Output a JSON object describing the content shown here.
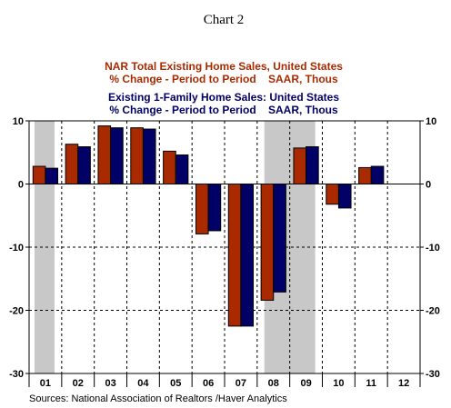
{
  "chart_data": {
    "type": "bar",
    "title": "Chart 2",
    "categories": [
      "01",
      "02",
      "03",
      "04",
      "05",
      "06",
      "07",
      "08",
      "09",
      "10",
      "11",
      "12"
    ],
    "series": [
      {
        "name": "NAR Total Existing Home Sales, United States",
        "subtitle": "% Change - Period to Period    SAAR, Thous",
        "color": "#aa2a00",
        "values": [
          2.8,
          6.3,
          9.2,
          8.9,
          5.2,
          -7.9,
          -22.5,
          -18.4,
          5.7,
          -3.2,
          2.6,
          null
        ]
      },
      {
        "name": "Existing 1-Family Home Sales: United States",
        "subtitle": "% Change - Period to Period    SAAR, Thous",
        "color": "#000066",
        "values": [
          2.5,
          5.9,
          8.9,
          8.7,
          4.6,
          -7.4,
          -22.5,
          -17.1,
          5.9,
          -3.8,
          2.8,
          null
        ]
      }
    ],
    "ylim": [
      -30,
      10
    ],
    "yticks": [
      10,
      0,
      -10,
      -20,
      -30
    ],
    "shaded_periods": [
      {
        "label": "2001 recession",
        "start_category": "01",
        "end_category": "01"
      },
      {
        "label": "2008-09 recession",
        "start_category": "08",
        "end_category": "09"
      }
    ],
    "grid": "dashed horizontal and vertical",
    "legend_placement": "top-center",
    "source": "Sources:  National Association of Realtors /Haver Analytics"
  }
}
